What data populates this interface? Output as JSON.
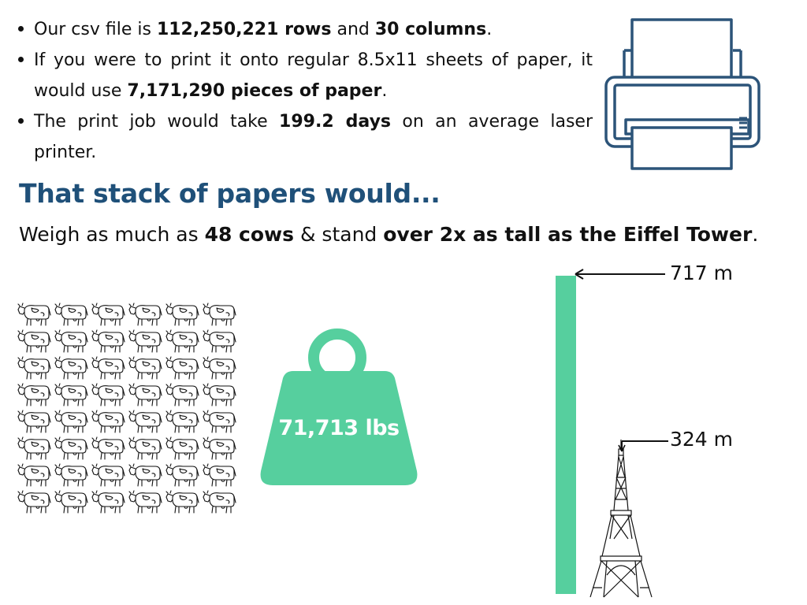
{
  "facts": [
    {
      "parts": [
        {
          "text": "Our csv file is ",
          "bold": false
        },
        {
          "text": "112,250,221 rows",
          "bold": true
        },
        {
          "text": " and ",
          "bold": false
        },
        {
          "text": "30 columns",
          "bold": true
        },
        {
          "text": ".",
          "bold": false
        }
      ]
    },
    {
      "parts": [
        {
          "text": "If you were to print it onto regular 8.5x11 sheets of paper, it would use ",
          "bold": false
        },
        {
          "text": "7,171,290 pieces of paper",
          "bold": true
        },
        {
          "text": ".",
          "bold": false
        }
      ]
    },
    {
      "parts": [
        {
          "text": "The print job would take ",
          "bold": false
        },
        {
          "text": "199.2 days",
          "bold": true
        },
        {
          "text": " on an average laser printer.",
          "bold": false
        }
      ]
    }
  ],
  "heading": "That stack of papers would...",
  "subline": [
    {
      "text": "Weigh as much as ",
      "bold": false
    },
    {
      "text": "48 cows",
      "bold": true
    },
    {
      "text": " & stand ",
      "bold": false
    },
    {
      "text": "over 2x as tall as the Eiffel Tower",
      "bold": true
    },
    {
      "text": ".",
      "bold": false
    }
  ],
  "cows": {
    "count": 48,
    "rows": 8,
    "columns": 6,
    "icon": "cow-icon"
  },
  "weight": {
    "label": "71,713 lbs",
    "icon": "kettlebell-weight-icon"
  },
  "heights": {
    "stack_label": "717 m",
    "tower_label": "324 m",
    "stack_m": 717,
    "tower_m": 324
  },
  "printer_icon": "printer-icon",
  "tower_icon": "eiffel-tower-icon",
  "colors": {
    "accent": "#56cf9e",
    "heading": "#1f5079",
    "printer": "#2c5479"
  }
}
